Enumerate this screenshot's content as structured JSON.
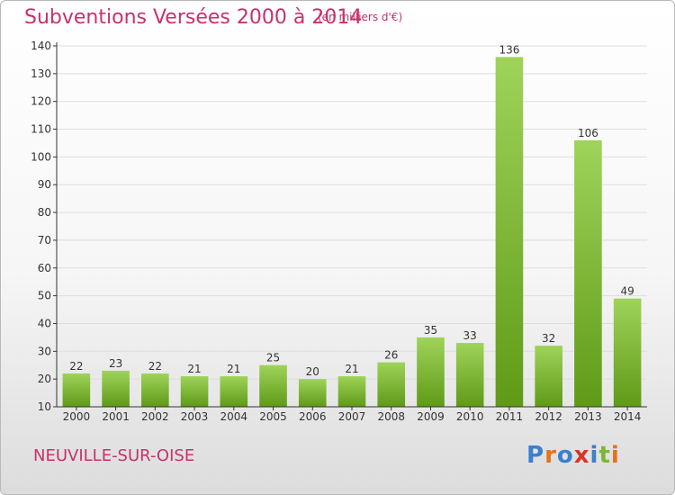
{
  "header": {
    "title": "Subventions Versées 2000 à 2014",
    "subtitle": "(en milliers d'€)"
  },
  "footer": {
    "commune": "NEUVILLE-SUR-OISE",
    "logo": "Proxiti",
    "logo_colors": [
      "#3b7fcf",
      "#e8711a",
      "#3b7fcf",
      "#d9342b",
      "#3b7fcf",
      "#7fb533",
      "#e8711a"
    ]
  },
  "colors": {
    "bar_light": "#9fd35a",
    "bar_dark": "#5f9a17",
    "accent": "#c8316c",
    "grid": "#dddddd",
    "axis": "#333333"
  },
  "chart_data": {
    "type": "bar",
    "title": "Subventions Versées 2000 à 2014",
    "subtitle": "(en milliers d'€)",
    "categories": [
      "2000",
      "2001",
      "2002",
      "2003",
      "2004",
      "2005",
      "2006",
      "2007",
      "2008",
      "2009",
      "2010",
      "2011",
      "2012",
      "2013",
      "2014"
    ],
    "values": [
      22,
      23,
      22,
      21,
      21,
      25,
      20,
      21,
      26,
      35,
      33,
      136,
      32,
      106,
      49
    ],
    "ylim": [
      10,
      140
    ],
    "yticks": [
      10,
      20,
      30,
      40,
      50,
      60,
      70,
      80,
      90,
      100,
      110,
      120,
      130,
      140
    ],
    "grid": true,
    "xlabel": "",
    "ylabel": ""
  }
}
